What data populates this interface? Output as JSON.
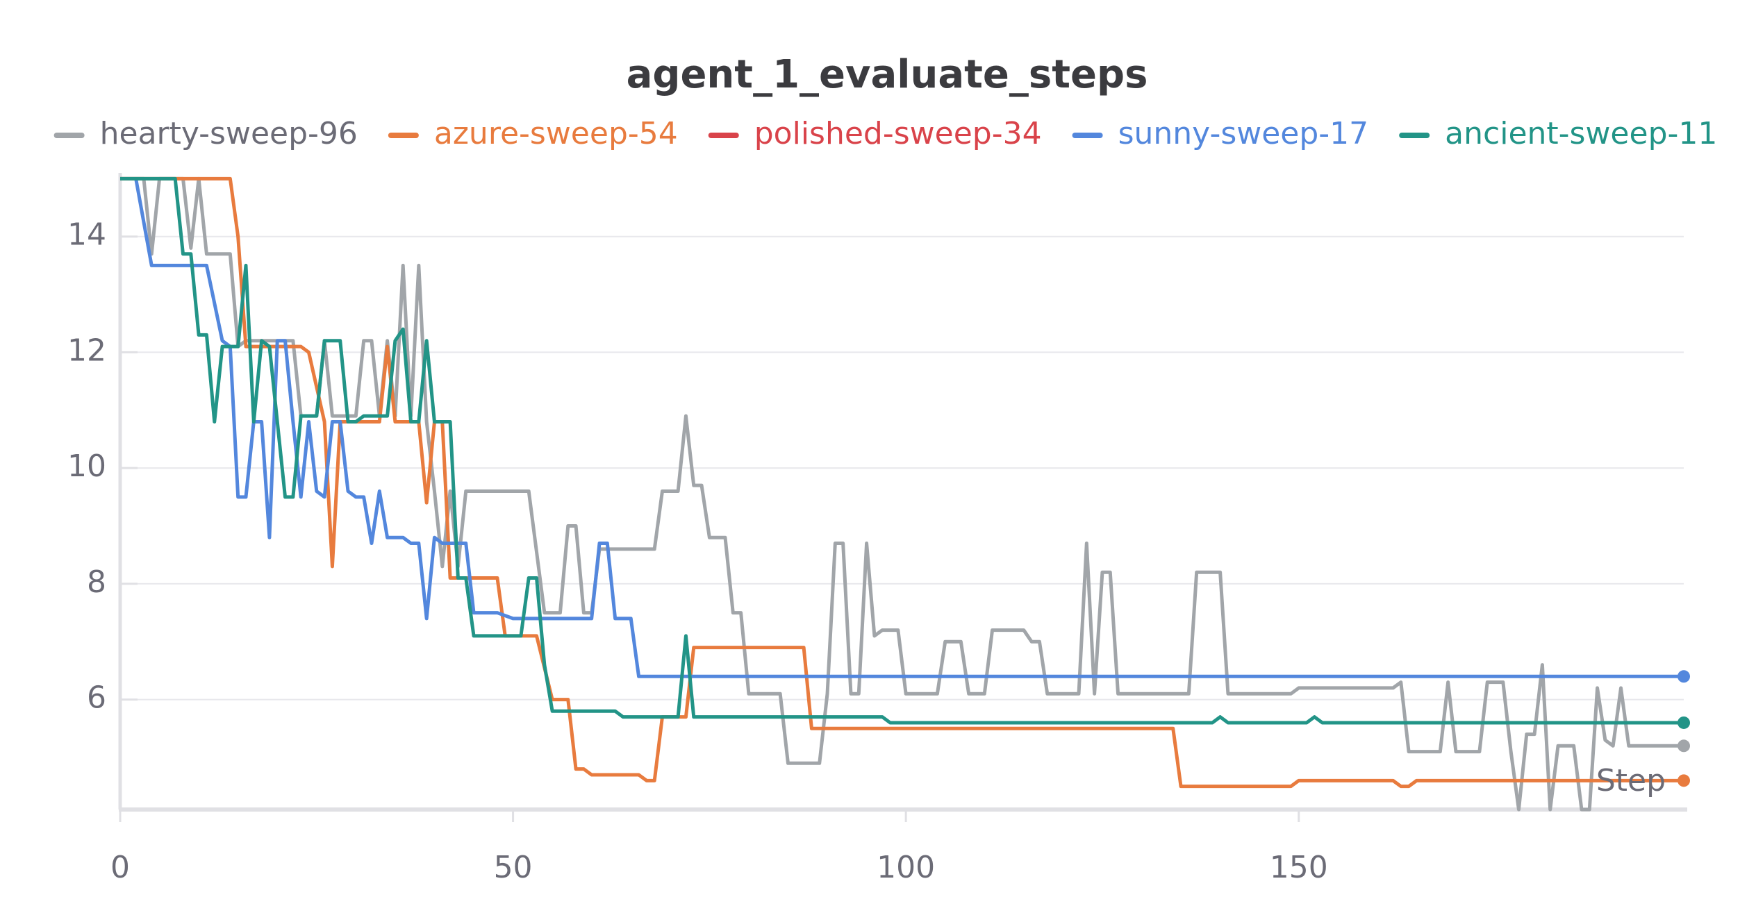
{
  "chart_data": {
    "type": "line",
    "title": "agent_1_evaluate_steps",
    "xlabel": "Step",
    "xlim": [
      0,
      199
    ],
    "ylim": [
      4.1,
      15.1
    ],
    "xticks": [
      0,
      50,
      100,
      150
    ],
    "yticks": [
      6,
      8,
      10,
      12,
      14
    ],
    "grid": true,
    "series": [
      {
        "name": "hearty-sweep-96",
        "color": "#a1a5a9",
        "x": [
          0,
          3,
          4,
          5,
          8,
          9,
          10,
          11,
          14,
          15,
          16,
          22,
          23,
          25,
          26,
          27,
          29,
          30,
          31,
          32,
          33,
          34,
          35,
          36,
          37,
          38,
          39,
          40,
          41,
          42,
          43,
          44,
          52,
          54,
          56,
          57,
          58,
          59,
          60,
          61,
          68,
          69,
          71,
          72,
          73,
          74,
          75,
          77,
          78,
          79,
          80,
          84,
          85,
          89,
          90,
          91,
          92,
          93,
          94,
          95,
          96,
          97,
          99,
          100,
          104,
          105,
          107,
          108,
          110,
          111,
          115,
          116,
          117,
          118,
          122,
          123,
          124,
          125,
          126,
          127,
          136,
          137,
          140,
          141,
          149,
          150,
          162,
          163,
          164,
          168,
          169,
          170,
          173,
          174,
          176,
          177,
          178,
          179,
          180,
          181,
          182,
          183,
          185,
          186,
          187,
          188,
          189,
          190,
          191,
          192,
          199
        ],
        "values": [
          15,
          15,
          13.7,
          15,
          15,
          13.8,
          15,
          13.7,
          13.7,
          12.1,
          12.2,
          12.2,
          10.9,
          10.9,
          12.2,
          10.9,
          10.9,
          10.9,
          12.2,
          12.2,
          10.9,
          12.2,
          10.9,
          13.5,
          10.9,
          13.5,
          10.8,
          9.6,
          8.3,
          9.6,
          8.3,
          9.6,
          9.6,
          7.5,
          7.5,
          9,
          9,
          7.5,
          7.5,
          8.6,
          8.6,
          9.6,
          9.6,
          10.9,
          9.7,
          9.7,
          8.8,
          8.8,
          7.5,
          7.5,
          6.1,
          6.1,
          4.9,
          4.9,
          6.1,
          8.7,
          8.7,
          6.1,
          6.1,
          8.7,
          7.1,
          7.2,
          7.2,
          6.1,
          6.1,
          7,
          7,
          6.1,
          6.1,
          7.2,
          7.2,
          7,
          7,
          6.1,
          6.1,
          8.7,
          6.1,
          8.2,
          8.2,
          6.1,
          6.1,
          8.2,
          8.2,
          6.1,
          6.1,
          6.2,
          6.2,
          6.3,
          5.1,
          5.1,
          6.3,
          5.1,
          5.1,
          6.3,
          6.3,
          5.1,
          4.1,
          5.4,
          5.4,
          6.6,
          4.1,
          5.2,
          5.2,
          4.1,
          4.1,
          6.2,
          5.3,
          5.2,
          6.2,
          5.2,
          5.2
        ]
      },
      {
        "name": "azure-sweep-54",
        "color": "#e87b3e",
        "x": [
          0,
          14,
          15,
          16,
          23,
          24,
          26,
          27,
          28,
          33,
          34,
          35,
          38,
          39,
          40,
          41,
          42,
          48,
          49,
          53,
          55,
          57,
          58,
          59,
          60,
          66,
          67,
          68,
          69,
          72,
          73,
          87,
          88,
          134,
          135,
          149,
          150,
          162,
          163,
          164,
          165,
          199
        ],
        "values": [
          15,
          15,
          14,
          12.1,
          12.1,
          12,
          10.8,
          8.3,
          10.8,
          10.8,
          12.1,
          10.8,
          10.8,
          9.4,
          10.8,
          10.8,
          8.1,
          8.1,
          7.1,
          7.1,
          6,
          6,
          4.8,
          4.8,
          4.7,
          4.7,
          4.6,
          4.6,
          5.7,
          5.7,
          6.9,
          6.9,
          5.5,
          5.5,
          4.5,
          4.5,
          4.6,
          4.6,
          4.5,
          4.5,
          4.6,
          4.6
        ]
      },
      {
        "name": "polished-sweep-34",
        "color": "#d9434a",
        "x": [],
        "values": []
      },
      {
        "name": "sunny-sweep-17",
        "color": "#5387dd",
        "x": [
          2,
          4,
          11,
          13,
          14,
          15,
          16,
          17,
          18,
          19,
          20,
          21,
          22,
          23,
          24,
          25,
          26,
          27,
          28,
          29,
          30,
          31,
          32,
          33,
          34,
          36,
          37,
          38,
          39,
          40,
          41,
          44,
          45,
          48,
          50,
          60,
          61,
          62,
          63,
          65,
          66,
          199
        ],
        "values": [
          15,
          13.5,
          13.5,
          12.2,
          12.1,
          9.5,
          9.5,
          10.8,
          10.8,
          8.8,
          12.2,
          12.2,
          10.8,
          9.5,
          10.8,
          9.6,
          9.5,
          10.8,
          10.8,
          9.6,
          9.5,
          9.5,
          8.7,
          9.6,
          8.8,
          8.8,
          8.7,
          8.7,
          7.4,
          8.8,
          8.7,
          8.7,
          7.5,
          7.5,
          7.4,
          7.4,
          8.7,
          8.7,
          7.4,
          7.4,
          6.4,
          6.4
        ]
      },
      {
        "name": "ancient-sweep-11",
        "color": "#229487",
        "x": [
          0,
          7,
          8,
          9,
          10,
          11,
          12,
          13,
          15,
          16,
          17,
          18,
          19,
          20,
          21,
          22,
          23,
          25,
          26,
          28,
          29,
          30,
          31,
          34,
          35,
          36,
          37,
          38,
          39,
          40,
          42,
          43,
          44,
          45,
          49,
          51,
          52,
          53,
          54,
          55,
          63,
          64,
          71,
          72,
          73,
          97,
          98,
          139,
          140,
          141,
          151,
          152,
          153,
          199
        ],
        "values": [
          15,
          15,
          13.7,
          13.7,
          12.3,
          12.3,
          10.8,
          12.1,
          12.1,
          13.5,
          10.8,
          12.2,
          12.1,
          10.8,
          9.5,
          9.5,
          10.9,
          10.9,
          12.2,
          12.2,
          10.8,
          10.8,
          10.9,
          10.9,
          12.2,
          12.4,
          10.8,
          10.8,
          12.2,
          10.8,
          10.8,
          8.1,
          8.1,
          7.1,
          7.1,
          7.1,
          8.1,
          8.1,
          6.6,
          5.8,
          5.8,
          5.7,
          5.7,
          7.1,
          5.7,
          5.7,
          5.6,
          5.6,
          5.7,
          5.6,
          5.6,
          5.7,
          5.6,
          5.6
        ]
      }
    ]
  }
}
